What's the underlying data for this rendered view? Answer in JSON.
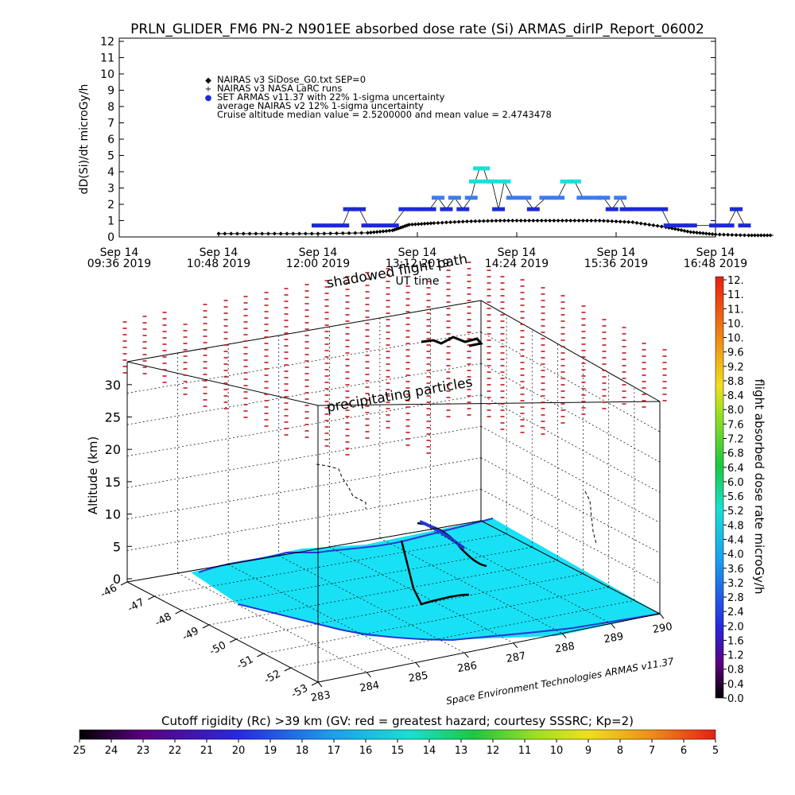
{
  "title": "PRLN_GLIDER_FM6 PN-2 N901EE absorbed dose rate (Si) ARMAS_dirIP_Report_06002",
  "chart_data": [
    {
      "type": "scatter",
      "ylabel": "dD(Si)/dt microGy/h",
      "xlabel": "UT time",
      "ylim": [
        0,
        12
      ],
      "yticks": [
        "0",
        "1",
        "2",
        "3",
        "4",
        "5",
        "6",
        "7",
        "8",
        "9",
        "10",
        "11",
        "12"
      ],
      "xlim_hours": [
        9.6,
        16.8
      ],
      "xticks": [
        {
          "date": "Sep 14",
          "time": "09:36 2019"
        },
        {
          "date": "Sep 14",
          "time": "10:48 2019"
        },
        {
          "date": "Sep 14",
          "time": "12:00 2019"
        },
        {
          "date": "Sep 14",
          "time": "13:12 2019"
        },
        {
          "date": "Sep 14",
          "time": "14:24 2019"
        },
        {
          "date": "Sep 14",
          "time": "15:36 2019"
        },
        {
          "date": "Sep 14",
          "time": "16:48 2019"
        }
      ],
      "legend": [
        {
          "marker": "◆",
          "text": "NAIRAS v3 SiDose_G0.txt SEP=0"
        },
        {
          "marker": "+",
          "text": "NAIRAS v3 NASA LaRC runs"
        },
        {
          "marker": "●",
          "text": "SET ARMAS v11.37 with 22% 1-sigma uncertainty"
        },
        {
          "marker": "",
          "text": "average NAIRAS v2 12% 1-sigma uncertainty"
        },
        {
          "marker": "",
          "text": "Cruise altitude median value = 2.5200000 and mean value = 2.4743478"
        }
      ],
      "series": [
        {
          "name": "SET ARMAS v11.37",
          "points": [
            {
              "t": 12.0,
              "v": 0.7
            },
            {
              "t": 12.15,
              "v": 0.7
            },
            {
              "t": 12.3,
              "v": 0.7
            },
            {
              "t": 12.38,
              "v": 1.7
            },
            {
              "t": 12.5,
              "v": 1.7
            },
            {
              "t": 12.6,
              "v": 0.7
            },
            {
              "t": 12.75,
              "v": 0.7
            },
            {
              "t": 12.9,
              "v": 0.7
            },
            {
              "t": 13.05,
              "v": 1.7
            },
            {
              "t": 13.2,
              "v": 1.7
            },
            {
              "t": 13.35,
              "v": 1.7
            },
            {
              "t": 13.45,
              "v": 2.4
            },
            {
              "t": 13.55,
              "v": 1.7
            },
            {
              "t": 13.65,
              "v": 2.4
            },
            {
              "t": 13.75,
              "v": 1.7
            },
            {
              "t": 13.85,
              "v": 2.4
            },
            {
              "t": 13.9,
              "v": 3.4
            },
            {
              "t": 13.95,
              "v": 4.2
            },
            {
              "t": 14.0,
              "v": 4.2
            },
            {
              "t": 14.05,
              "v": 3.4
            },
            {
              "t": 14.1,
              "v": 3.4
            },
            {
              "t": 14.18,
              "v": 1.7
            },
            {
              "t": 14.25,
              "v": 3.4
            },
            {
              "t": 14.35,
              "v": 2.4
            },
            {
              "t": 14.5,
              "v": 2.4
            },
            {
              "t": 14.6,
              "v": 1.7
            },
            {
              "t": 14.75,
              "v": 2.4
            },
            {
              "t": 14.9,
              "v": 2.4
            },
            {
              "t": 15.0,
              "v": 3.4
            },
            {
              "t": 15.1,
              "v": 3.4
            },
            {
              "t": 15.2,
              "v": 2.4
            },
            {
              "t": 15.35,
              "v": 2.4
            },
            {
              "t": 15.45,
              "v": 2.4
            },
            {
              "t": 15.55,
              "v": 1.7
            },
            {
              "t": 15.65,
              "v": 2.4
            },
            {
              "t": 15.72,
              "v": 1.7
            },
            {
              "t": 15.85,
              "v": 1.7
            },
            {
              "t": 16.0,
              "v": 1.7
            },
            {
              "t": 16.15,
              "v": 1.7
            },
            {
              "t": 16.25,
              "v": 0.7
            },
            {
              "t": 16.4,
              "v": 0.7
            },
            {
              "t": 16.5,
              "v": 0.7
            },
            {
              "t": 16.8,
              "v": 0.7
            },
            {
              "t": 16.95,
              "v": 0.7
            },
            {
              "t": 17.05,
              "v": 1.7
            },
            {
              "t": 17.15,
              "v": 0.7
            }
          ]
        },
        {
          "name": "NAIRAS v3 SiDose_G0.txt SEP=0",
          "points": [
            {
              "t": 10.8,
              "v": 0.2
            },
            {
              "t": 11.4,
              "v": 0.2
            },
            {
              "t": 12.0,
              "v": 0.2
            },
            {
              "t": 12.6,
              "v": 0.25
            },
            {
              "t": 12.9,
              "v": 0.4
            },
            {
              "t": 13.1,
              "v": 0.75
            },
            {
              "t": 13.4,
              "v": 0.85
            },
            {
              "t": 13.8,
              "v": 0.95
            },
            {
              "t": 14.2,
              "v": 1.0
            },
            {
              "t": 14.6,
              "v": 1.0
            },
            {
              "t": 15.0,
              "v": 1.0
            },
            {
              "t": 15.4,
              "v": 1.0
            },
            {
              "t": 15.8,
              "v": 0.9
            },
            {
              "t": 16.2,
              "v": 0.6
            },
            {
              "t": 16.5,
              "v": 0.3
            },
            {
              "t": 16.8,
              "v": 0.15
            },
            {
              "t": 17.2,
              "v": 0.1
            },
            {
              "t": 17.5,
              "v": 0.1
            }
          ]
        }
      ]
    },
    {
      "type": "3d-surface-map",
      "ylabel": "Altitude (km)",
      "zticks": [
        "0",
        "5",
        "10",
        "15",
        "20",
        "25",
        "30"
      ],
      "lat_ticks": [
        "-46",
        "-47",
        "-48",
        "-49",
        "-50",
        "-51",
        "-52",
        "-53"
      ],
      "lon_ticks": [
        "283",
        "284",
        "285",
        "286",
        "287",
        "288",
        "289",
        "290"
      ],
      "annotations": [
        "shadowed flight path",
        "precipitating particles"
      ],
      "credit": "Space Environment Technologies ARMAS v11.37"
    }
  ],
  "dose_colorbar": {
    "label": "flight absorbed dose rate microGy/h",
    "ticks": [
      "0.0",
      "0.4",
      "0.8",
      "1.2",
      "1.6",
      "2.0",
      "2.4",
      "2.8",
      "3.2",
      "3.6",
      "4.0",
      "4.4",
      "4.8",
      "5.2",
      "5.6",
      "6.0",
      "6.4",
      "6.8",
      "7.2",
      "7.6",
      "8.0",
      "8.4",
      "8.8",
      "9.2",
      "9.6",
      "10.",
      "10.",
      "11.",
      "11.",
      "12."
    ]
  },
  "rigidity_colorbar": {
    "label": "Cutoff rigidity (Rc) >39 km (GV: red = greatest hazard; courtesy SSSRC; Kp=2)",
    "ticks": [
      "25",
      "24",
      "23",
      "22",
      "21",
      "20",
      "19",
      "18",
      "17",
      "16",
      "15",
      "14",
      "13",
      "12",
      "11",
      "10",
      "9",
      "8",
      "7",
      "6",
      "5"
    ]
  },
  "colors": {
    "armas_points": "#1E2AD8",
    "armas_high": "#18E0D8",
    "armas_mid": "#3B7CF0",
    "nairas": "#000000",
    "grid": "#888888",
    "surface": "#19E1F5",
    "precip_marks": "#C8141E"
  }
}
